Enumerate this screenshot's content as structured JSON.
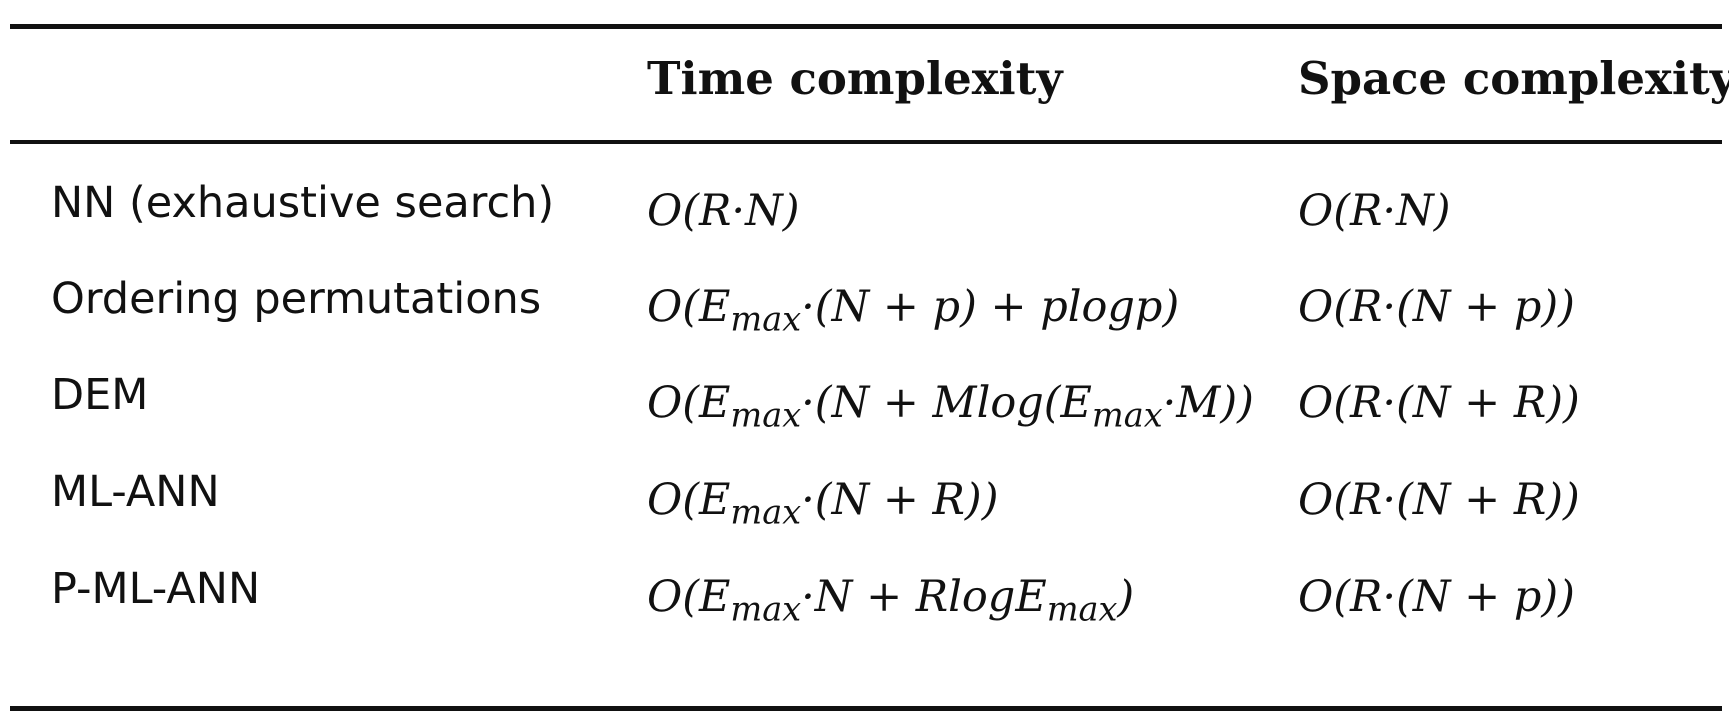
{
  "table": {
    "headers": {
      "row_label": "",
      "time": "Time complexity",
      "space": "Space complexity"
    },
    "rows": [
      {
        "label": "NN (exhaustive search)",
        "time": "O(R·N)",
        "space": "O(R·N)"
      },
      {
        "label": "Ordering permutations",
        "time": "O(E_max·(N + p) + plogp)",
        "space": "O(R·(N + p))"
      },
      {
        "label": "DEM",
        "time": "O(E_max·(N + Mlog(E_max·M))",
        "space": "O(R·(N + R))"
      },
      {
        "label": "ML-ANN",
        "time": "O(E_max·(N + R))",
        "space": "O(R·(N + R))"
      },
      {
        "label": "P-ML-ANN",
        "time": "O(E_max·N + RlogE_max)",
        "space": "O(R·(N + p))"
      }
    ]
  }
}
